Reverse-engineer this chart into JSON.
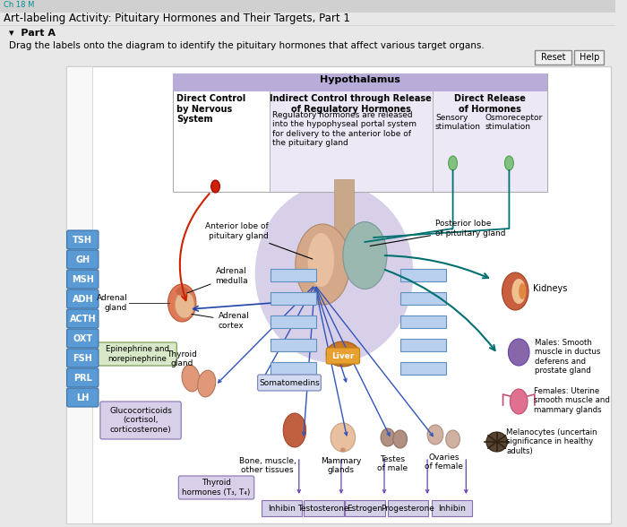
{
  "title": "Art-labeling Activity: Pituitary Hormones and Their Targets, Part 1",
  "subtitle": "▾  Part A",
  "instruction": "Drag the labels onto the diagram to identify the pituitary hormones that affect various target organs.",
  "bg_outer": "#e8e8e8",
  "bg_panel": "#ffffff",
  "bg_hypo_header": "#b8acd8",
  "bg_hypo_body": "#dbd6ee",
  "bg_hypo_white": "#f0eef8",
  "left_labels": [
    "TSH",
    "GH",
    "MSH",
    "ADH",
    "ACTH",
    "OXT",
    "FSH",
    "PRL",
    "LH"
  ],
  "left_label_color": "#5b9bd5",
  "bottom_labels": [
    "Inhibin",
    "Testosterone",
    "Estrogen",
    "Progesterone",
    "Inhibin"
  ],
  "reset_btn": "Reset",
  "help_btn": "Help",
  "hypo_title": "Hypothalamus",
  "col1_title": "Direct Control\nby Nervous\nSystem",
  "col2_title": "Indirect Control through Release\nof Regulatory Hormones",
  "col2_body": "Regulatory hormones are released\ninto the hypophyseal portal system\nfor delivery to the anterior lobe of\nthe pituitary gland",
  "col3_title": "Direct Release\nof Hormones",
  "col3_sub1": "Sensory\nstimulation",
  "col3_sub2": "Osmoreceptor\nstimulation",
  "anterior_lobe": "Anterior lobe of\npituitary gland",
  "posterior_lobe": "Posterior lobe\nof pituitary gland",
  "adrenal_medulla": "Adrenal\nmedulla",
  "adrenal_gland": "Adrenal\ngland",
  "adrenal_cortex": "Adrenal\ncortex",
  "epinephrine": "Epinephrine and\nnorepinephrine",
  "thyroid_gland": "Thyroid\ngland",
  "liver_label": "Liver",
  "somatomedins": "Somatomedins",
  "glucocorticoids": "Glucocorticoids\n(cortisol,\ncorticosterone)",
  "bone_muscle": "Bone, muscle,\nother tissues",
  "mammary": "Mammary\nglands",
  "testes": "Testes\nof male",
  "ovaries": "Ovaries\nof female",
  "thyroid_hormones": "Thyroid\nhormones (T₃, T₄)",
  "kidneys": "Kidneys",
  "males_smooth": "Males: Smooth\nmuscle in ductus\ndeferens and\nprostate gland",
  "females_uterine": "Females: Uterine\nsmooth muscle and\nmammary glands",
  "melanocytes": "Melanocytes (uncertain\nsignificance in healthy\nadults)"
}
